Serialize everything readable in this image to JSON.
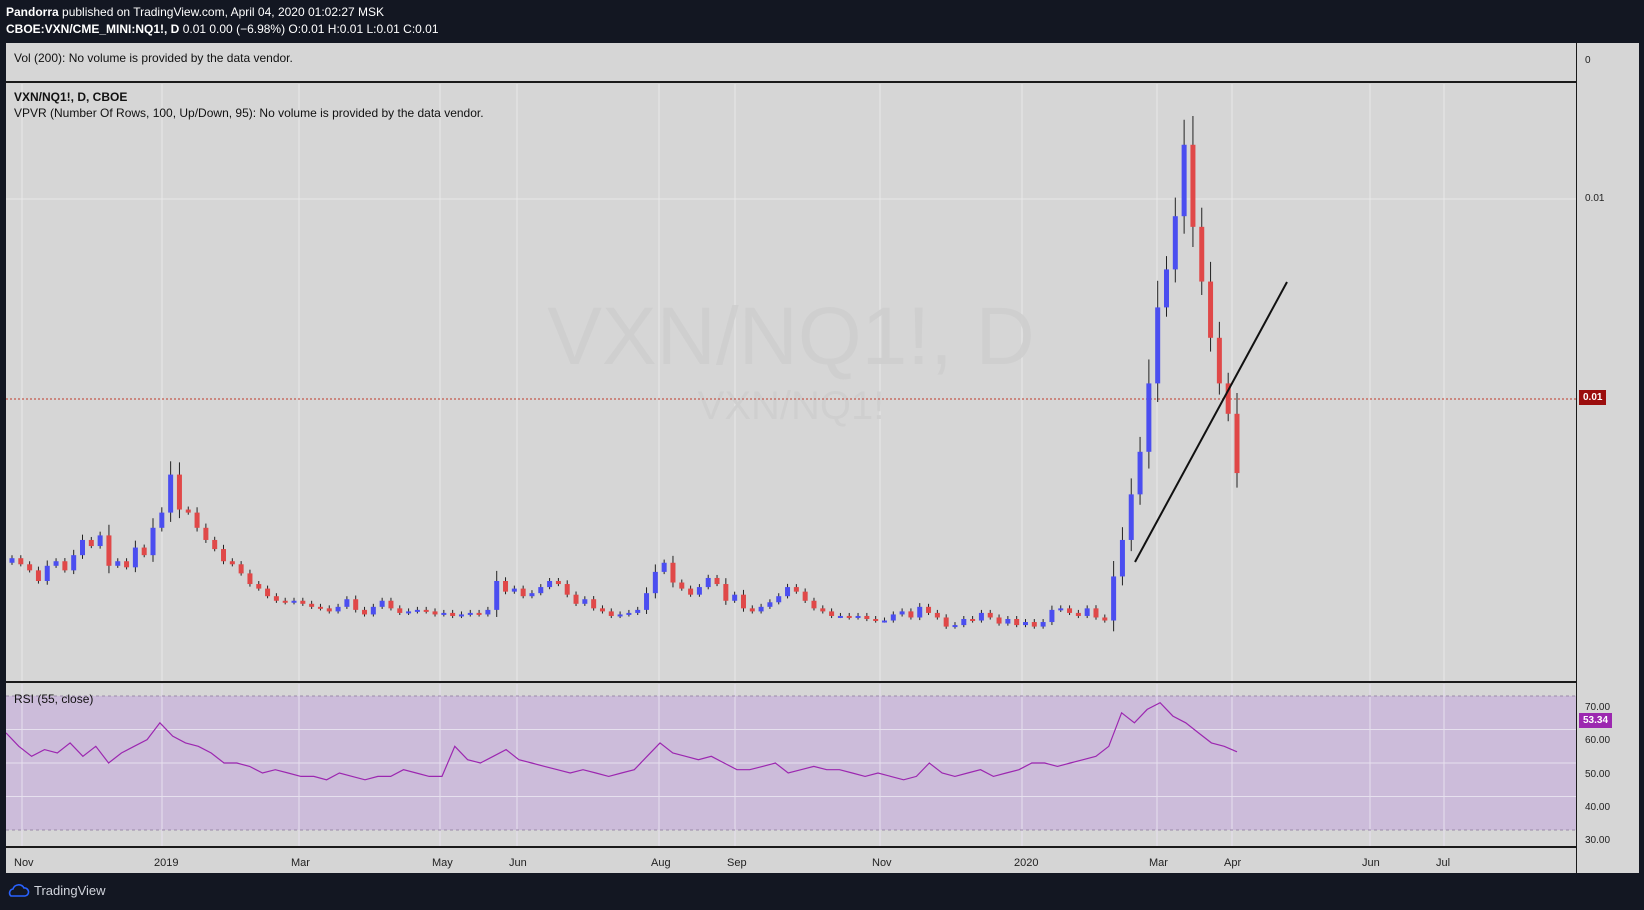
{
  "header": {
    "author": "Pandorra",
    "published": "published on TradingView.com, April 04, 2020 01:02:27 MSK",
    "symbol_line": "CBOE:VXN/CME_MINI:NQ1!, D",
    "ohlc": "0.01 0.00 (−6.98%) O:0.01 H:0.01 L:0.01 C:0.01"
  },
  "volume_pane": {
    "label": "Vol (200): No volume is provided by the data vendor.",
    "axis_tick": "0"
  },
  "main_pane": {
    "title": "VXN/NQ1!, D, CBOE",
    "vpvr": "VPVR (Number Of Rows, 100, Up/Down, 95): No volume is provided by the data vendor.",
    "watermark_big": "VXN/NQ1!, D",
    "watermark_small": "VXN/NQ1!",
    "axis_tick": "0.01",
    "price_tag": "0.01",
    "colors": {
      "up": "#4b4ef0",
      "down": "#e04848",
      "price_line": "#c0392b",
      "tag_bg": "#9b0d0d"
    }
  },
  "rsi_pane": {
    "label": "RSI (55, close)",
    "ticks": [
      "70.00",
      "60.00",
      "50.00",
      "40.00",
      "30.00"
    ],
    "value_tag": "53.34",
    "colors": {
      "line": "#9c27b0",
      "band": "#c7b0dc",
      "tag_bg": "#9c27b0"
    }
  },
  "x_axis": [
    "Nov",
    "2019",
    "Mar",
    "May",
    "Jun",
    "Aug",
    "Sep",
    "Nov",
    "2020",
    "Mar",
    "Apr",
    "Jun",
    "Jul"
  ],
  "footer": {
    "brand": "TradingView"
  },
  "chart_data": {
    "type": "candlestick",
    "title": "VXN/NQ1!, D, CBOE",
    "x_ticks": [
      "Nov",
      "2019",
      "Mar",
      "May",
      "Jun",
      "Aug",
      "Sep",
      "Nov",
      "2020",
      "Mar",
      "Apr",
      "Jun",
      "Jul"
    ],
    "y_ticks": [
      "0.01"
    ],
    "series": [
      {
        "name": "VXN/NQ1!",
        "close_index": [
          0.4,
          0.36,
          0.32,
          0.25,
          0.35,
          0.38,
          0.32,
          0.42,
          0.52,
          0.48,
          0.55,
          0.35,
          0.38,
          0.34,
          0.47,
          0.42,
          0.6,
          0.7,
          0.95,
          0.72,
          0.7,
          0.6,
          0.52,
          0.46,
          0.38,
          0.36,
          0.3,
          0.23,
          0.2,
          0.15,
          0.12,
          0.11,
          0.12,
          0.1,
          0.08,
          0.07,
          0.05,
          0.08,
          0.13,
          0.06,
          0.03,
          0.08,
          0.12,
          0.07,
          0.04,
          0.05,
          0.06,
          0.05,
          0.03,
          0.04,
          0.02,
          0.03,
          0.04,
          0.03,
          0.06,
          0.25,
          0.18,
          0.2,
          0.15,
          0.17,
          0.21,
          0.25,
          0.23,
          0.16,
          0.1,
          0.13,
          0.07,
          0.05,
          0.02,
          0.03,
          0.04,
          0.06,
          0.17,
          0.31,
          0.37,
          0.24,
          0.2,
          0.16,
          0.21,
          0.27,
          0.23,
          0.12,
          0.16,
          0.07,
          0.05,
          0.08,
          0.11,
          0.15,
          0.21,
          0.18,
          0.12,
          0.07,
          0.05,
          0.02,
          0.02,
          0.01,
          0.02,
          0.0,
          -0.01,
          -0.01,
          0.03,
          0.05,
          0.01,
          0.08,
          0.04,
          0.01,
          -0.05,
          -0.04,
          0.0,
          -0.01,
          0.04,
          0.01,
          -0.03,
          0.0,
          -0.04,
          -0.02,
          -0.05,
          -0.02,
          0.06,
          0.07,
          0.04,
          0.02,
          0.07,
          0.01,
          -0.01,
          0.28,
          0.52,
          0.82,
          1.1,
          1.55,
          2.05,
          2.3,
          2.65,
          3.12,
          2.58,
          2.22,
          1.85,
          1.55,
          1.35,
          0.96
        ],
        "note": "Relative price level per candle (unitless index); the chart prints no per-candle values"
      },
      {
        "name": "RSI (55, close)",
        "values": [
          59,
          55,
          52,
          54,
          53,
          56,
          52,
          55,
          50,
          53,
          55,
          57,
          62,
          58,
          56,
          55,
          53,
          50,
          50,
          49,
          47,
          48,
          47,
          46,
          46,
          45,
          47,
          46,
          45,
          46,
          46,
          48,
          47,
          46,
          46,
          55,
          51,
          50,
          52,
          54,
          51,
          50,
          49,
          48,
          47,
          48,
          47,
          46,
          47,
          48,
          52,
          56,
          53,
          52,
          51,
          52,
          50,
          48,
          48,
          49,
          50,
          47,
          48,
          49,
          48,
          48,
          47,
          46,
          47,
          46,
          45,
          46,
          50,
          47,
          46,
          47,
          48,
          46,
          47,
          48,
          50,
          50,
          49,
          50,
          51,
          52,
          55,
          65,
          62,
          66,
          68,
          64,
          62,
          59,
          56,
          55,
          53.34
        ],
        "ylim": [
          30,
          70
        ]
      }
    ]
  }
}
